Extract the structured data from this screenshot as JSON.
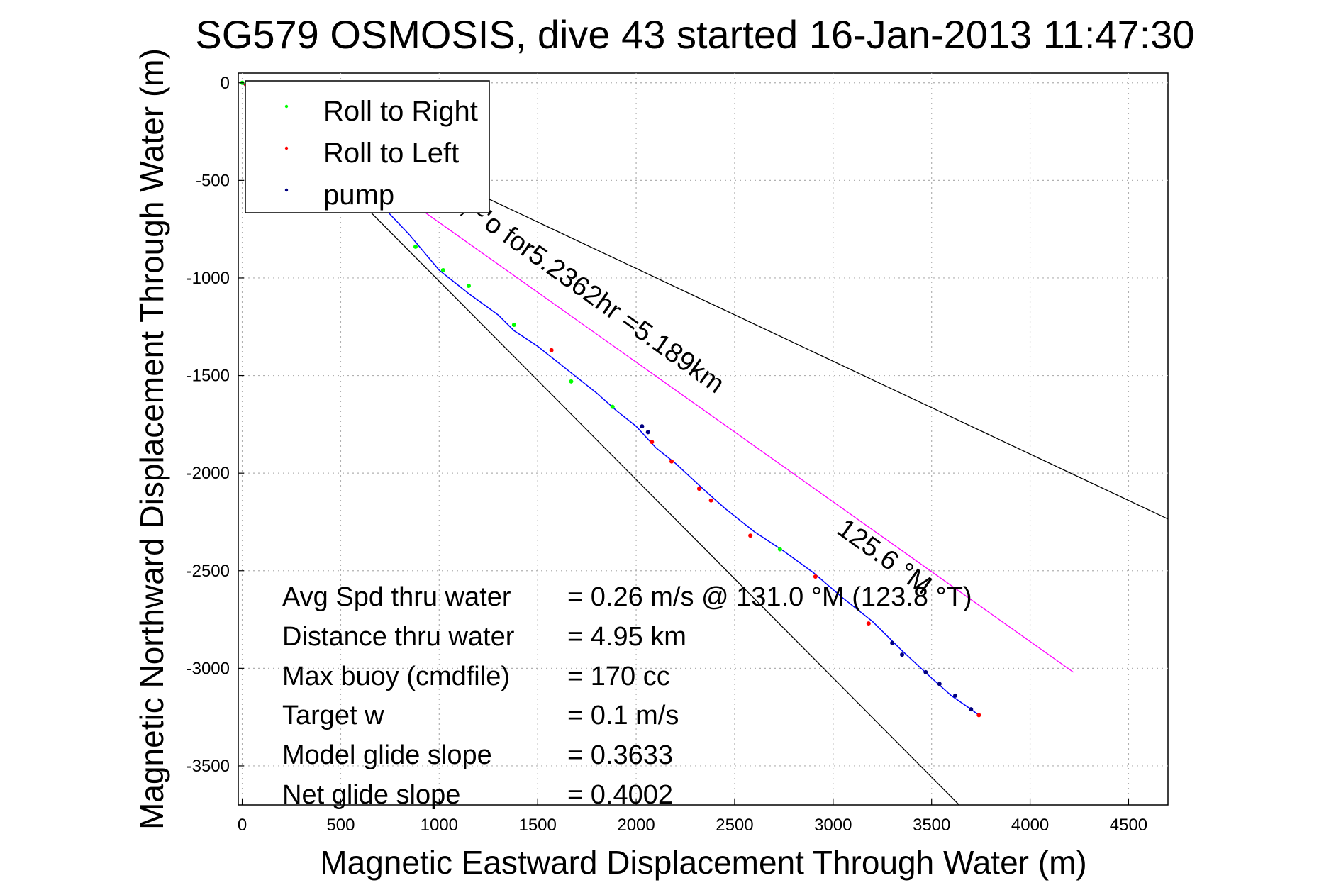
{
  "chart_data": {
    "type": "line",
    "title": "SG579 OSMOSIS, dive 43 started 16-Jan-2013 11:47:30",
    "xlabel": "Magnetic Eastward Displacement Through Water (m)",
    "ylabel": "Magnetic Northward Displacement Through Water (m)",
    "xlim": [
      -20,
      4700
    ],
    "ylim": [
      -3700,
      50
    ],
    "xticks": [
      "0",
      "500",
      "1000",
      "1500",
      "2000",
      "2500",
      "3000",
      "3500",
      "4000",
      "4500"
    ],
    "xtick_values": [
      0,
      500,
      1000,
      1500,
      2000,
      2500,
      3000,
      3500,
      4000,
      4500
    ],
    "yticks": [
      "0",
      "-500",
      "-1000",
      "-1500",
      "-2000",
      "-2500",
      "-3000",
      "-3500"
    ],
    "ytick_values": [
      0,
      -500,
      -1000,
      -1500,
      -2000,
      -2500,
      -3000,
      -3500
    ],
    "grid": true,
    "legend_position": "top-left",
    "legend": [
      {
        "label": "Roll to Right",
        "color": "#00ff00"
      },
      {
        "label": "Roll to Left",
        "color": "#ff0000"
      },
      {
        "label": "pump",
        "color": "#000080"
      }
    ],
    "series": [
      {
        "color": "#0000ff",
        "track_x": [
          0,
          120,
          300,
          500,
          700,
          850,
          1000,
          1150,
          1300,
          1380,
          1500,
          1650,
          1800,
          1900,
          2000,
          2100,
          2200,
          2350,
          2450,
          2600,
          2750,
          2900,
          3050,
          3200,
          3350,
          3500,
          3600,
          3700,
          3740
        ],
        "track_y": [
          0,
          -80,
          -220,
          -420,
          -620,
          -780,
          -960,
          -1080,
          -1190,
          -1270,
          -1350,
          -1470,
          -1590,
          -1680,
          -1760,
          -1870,
          -1950,
          -2090,
          -2180,
          -2300,
          -2400,
          -2510,
          -2640,
          -2760,
          -2910,
          -3050,
          -3140,
          -3210,
          -3240
        ]
      },
      {
        "name": "Roll to Right",
        "color": "#00ff00",
        "x": [
          0,
          880,
          1020,
          1150,
          1380,
          1670,
          1880,
          2730
        ],
        "y": [
          0,
          -840,
          -960,
          -1040,
          -1240,
          -1530,
          -1660,
          -2390
        ]
      },
      {
        "name": "Roll to Left",
        "color": "#ff0000",
        "x": [
          20,
          1570,
          2080,
          2180,
          2320,
          2380,
          2580,
          2910,
          3180,
          3740
        ],
        "y": [
          -10,
          -1370,
          -1840,
          -1940,
          -2080,
          -2140,
          -2320,
          -2530,
          -2770,
          -3240
        ]
      },
      {
        "name": "pump",
        "color": "#000080",
        "x": [
          2030,
          2060,
          3300,
          3350,
          3470,
          3540,
          3620,
          3700
        ],
        "y": [
          -1760,
          -1790,
          -2870,
          -2930,
          -3020,
          -3080,
          -3140,
          -3210
        ]
      }
    ],
    "reference_lines": [
      {
        "color": "#000000",
        "x": [
          0,
          4700
        ],
        "y": [
          0,
          -2235
        ]
      },
      {
        "color": "#000000",
        "x": [
          0,
          3640
        ],
        "y": [
          0,
          -3700
        ]
      },
      {
        "color": "#ff00ff",
        "x": [
          0,
          4220
        ],
        "y": [
          0,
          -3020
        ]
      }
    ],
    "annotations": {
      "line_label": "~,~'o for5.2362hr =5.189km",
      "heading_label": "125.6 °M"
    },
    "stats": [
      {
        "label": "Avg Spd thru water",
        "value": "=  0.26 m/s @  131.0  °M (123.8  °T)"
      },
      {
        "label": "Distance thru water",
        "value": "=  4.95 km"
      },
      {
        "label": "Max buoy (cmdfile)",
        "value": "= 170 cc"
      },
      {
        "label": "Target w",
        "value": "= 0.1 m/s"
      },
      {
        "label": "Model glide slope",
        "value": "= 0.3633"
      },
      {
        "label": "Net glide slope",
        "value": "= 0.4002"
      }
    ]
  }
}
